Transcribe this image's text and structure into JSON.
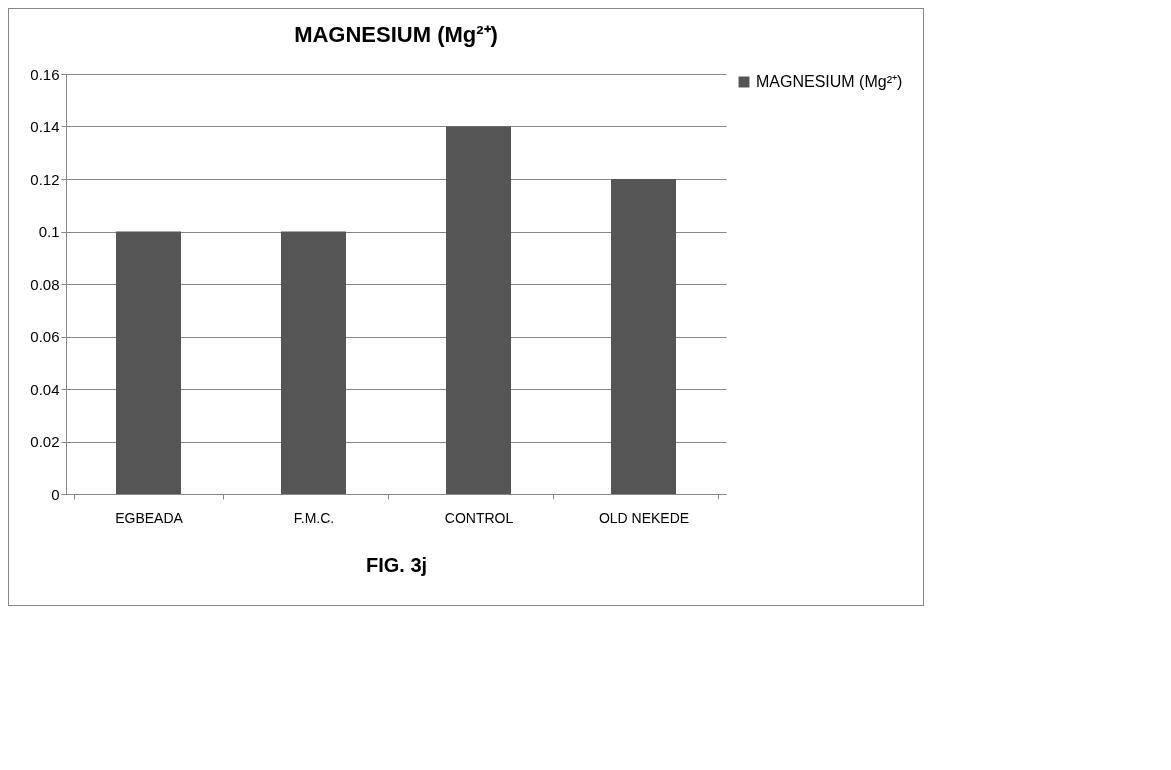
{
  "chart_data": {
    "type": "bar",
    "title": "MAGNESIUM  (Mg²⁺)",
    "xlabel": "FIG. 3j",
    "categories": [
      "EGBEADA",
      "F.M.C.",
      "CONTROL",
      "OLD NEKEDE"
    ],
    "series": [
      {
        "name": "MAGNESIUM (Mg²⁺)",
        "color": "#555555",
        "values": [
          0.1,
          0.1,
          0.14,
          0.12
        ]
      }
    ],
    "ylim": [
      0,
      0.16
    ],
    "yticks": [
      0,
      0.02,
      0.04,
      0.06,
      0.08,
      0.1,
      0.12,
      0.14,
      0.16
    ],
    "grid": "y",
    "legend": "right"
  }
}
